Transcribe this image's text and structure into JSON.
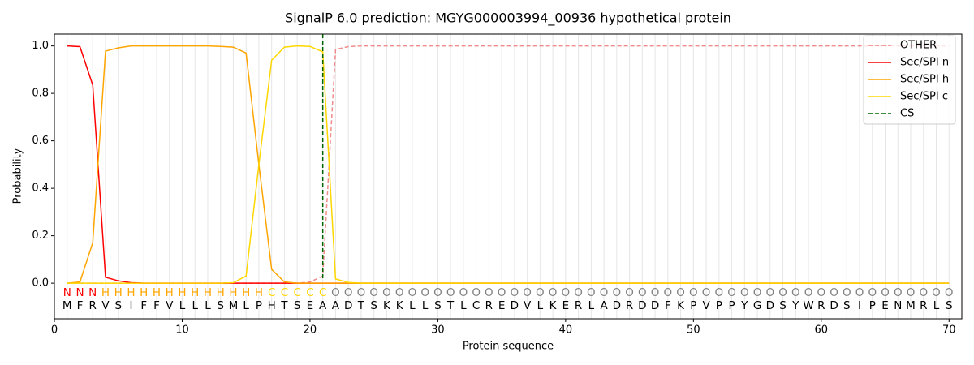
{
  "chart_data": {
    "type": "line",
    "title": "SignalP 6.0 prediction: MGYG000003994_00936 hypothetical protein",
    "x_label": "Protein sequence",
    "y_label": "Probability",
    "xlim": [
      0,
      71
    ],
    "ylim": [
      -0.15,
      1.05
    ],
    "xticks": [
      0,
      10,
      20,
      30,
      40,
      50,
      60,
      70
    ],
    "yticks": [
      {
        "value": 0,
        "label": "0.0"
      },
      {
        "value": 0.2,
        "label": "0.2"
      },
      {
        "value": 0.4,
        "label": "0.4"
      },
      {
        "value": 0.6,
        "label": "0.6"
      },
      {
        "value": 0.8,
        "label": "0.8"
      },
      {
        "value": 1,
        "label": "1.0"
      }
    ],
    "legend": "upper right",
    "x": [
      1,
      2,
      3,
      4,
      5,
      6,
      7,
      8,
      9,
      10,
      11,
      12,
      13,
      14,
      15,
      16,
      17,
      18,
      19,
      20,
      21,
      22,
      23,
      24,
      25,
      26,
      27,
      28,
      29,
      30,
      31,
      32,
      33,
      34,
      35,
      36,
      37,
      38,
      39,
      40,
      41,
      42,
      43,
      44,
      45,
      46,
      47,
      48,
      49,
      50,
      51,
      52,
      53,
      54,
      55,
      56,
      57,
      58,
      59,
      60,
      61,
      62,
      63,
      64,
      65,
      66,
      67,
      68,
      69,
      70
    ],
    "residues": [
      "M",
      "F",
      "R",
      "V",
      "S",
      "I",
      "F",
      "F",
      "V",
      "L",
      "L",
      "L",
      "S",
      "M",
      "L",
      "P",
      "H",
      "T",
      "S",
      "E",
      "A",
      "A",
      "D",
      "T",
      "S",
      "K",
      "K",
      "L",
      "L",
      "S",
      "T",
      "L",
      "C",
      "R",
      "E",
      "D",
      "V",
      "L",
      "K",
      "E",
      "R",
      "L",
      "A",
      "D",
      "R",
      "D",
      "D",
      "F",
      "K",
      "P",
      "V",
      "P",
      "P",
      "Y",
      "G",
      "D",
      "S",
      "Y",
      "W",
      "R",
      "D",
      "S",
      "I",
      "P",
      "E",
      "N",
      "M",
      "R",
      "L",
      "S"
    ],
    "labels": [
      "N",
      "N",
      "N",
      "H",
      "H",
      "H",
      "H",
      "H",
      "H",
      "H",
      "H",
      "H",
      "H",
      "H",
      "H",
      "H",
      "C",
      "C",
      "C",
      "C",
      "C",
      "O",
      "O",
      "O",
      "O",
      "O",
      "O",
      "O",
      "O",
      "O",
      "O",
      "O",
      "O",
      "O",
      "O",
      "O",
      "O",
      "O",
      "O",
      "O",
      "O",
      "O",
      "O",
      "O",
      "O",
      "O",
      "O",
      "O",
      "O",
      "O",
      "O",
      "O",
      "O",
      "O",
      "O",
      "O",
      "O",
      "O",
      "O",
      "O",
      "O",
      "O",
      "O",
      "O",
      "O",
      "O",
      "O",
      "O",
      "O",
      "O"
    ],
    "label_colors": {
      "N": "#ff0000",
      "H": "#ffa500",
      "C": "#ffd700",
      "O": "#808080"
    },
    "series": [
      {
        "name": "OTHER",
        "color": "#f08080",
        "dashed": true,
        "values": [
          0,
          0,
          0,
          0,
          0,
          0,
          0,
          0,
          0,
          0,
          0,
          0,
          0,
          0,
          0,
          0,
          0,
          0,
          0,
          0.005,
          0.03,
          0.985,
          0.997,
          1,
          1,
          1,
          1,
          1,
          1,
          1,
          1,
          1,
          1,
          1,
          1,
          1,
          1,
          1,
          1,
          1,
          1,
          1,
          1,
          1,
          1,
          1,
          1,
          1,
          1,
          1,
          1,
          1,
          1,
          1,
          1,
          1,
          1,
          1,
          1,
          1,
          1,
          1,
          1,
          1,
          1,
          1,
          1,
          1,
          1,
          1
        ]
      },
      {
        "name": "Sec/SPI n",
        "color": "#ff0000",
        "values": [
          1,
          0.997,
          0.835,
          0.025,
          0.01,
          0.002,
          0,
          0,
          0,
          0,
          0,
          0,
          0,
          0,
          0,
          0,
          0,
          0,
          0,
          0,
          0,
          0,
          0,
          0,
          0,
          0,
          0,
          0,
          0,
          0,
          0,
          0,
          0,
          0,
          0,
          0,
          0,
          0,
          0,
          0,
          0,
          0,
          0,
          0,
          0,
          0,
          0,
          0,
          0,
          0,
          0,
          0,
          0,
          0,
          0,
          0,
          0,
          0,
          0,
          0,
          0,
          0,
          0,
          0,
          0,
          0,
          0,
          0,
          0,
          0
        ]
      },
      {
        "name": "Sec/SPI h",
        "color": "#ffa500",
        "values": [
          0,
          0.005,
          0.17,
          0.978,
          0.992,
          1,
          1,
          1,
          1,
          1,
          1,
          1,
          0.998,
          0.995,
          0.97,
          0.5,
          0.058,
          0.005,
          0,
          0,
          0,
          0,
          0,
          0,
          0,
          0,
          0,
          0,
          0,
          0,
          0,
          0,
          0,
          0,
          0,
          0,
          0,
          0,
          0,
          0,
          0,
          0,
          0,
          0,
          0,
          0,
          0,
          0,
          0,
          0,
          0,
          0,
          0,
          0,
          0,
          0,
          0,
          0,
          0,
          0,
          0,
          0,
          0,
          0,
          0,
          0,
          0,
          0,
          0,
          0
        ]
      },
      {
        "name": "Sec/SPI c",
        "color": "#ffd700",
        "values": [
          0,
          0,
          0,
          0,
          0,
          0,
          0,
          0,
          0,
          0,
          0,
          0,
          0,
          0.002,
          0.03,
          0.5,
          0.94,
          0.995,
          1,
          0.998,
          0.975,
          0.018,
          0.003,
          0,
          0,
          0,
          0,
          0,
          0,
          0,
          0,
          0,
          0,
          0,
          0,
          0,
          0,
          0,
          0,
          0,
          0,
          0,
          0,
          0,
          0,
          0,
          0,
          0,
          0,
          0,
          0,
          0,
          0,
          0,
          0,
          0,
          0,
          0,
          0,
          0,
          0,
          0,
          0,
          0,
          0,
          0,
          0,
          0,
          0,
          0
        ]
      }
    ],
    "cs": {
      "name": "CS",
      "position": 21,
      "color": "#006400"
    }
  }
}
